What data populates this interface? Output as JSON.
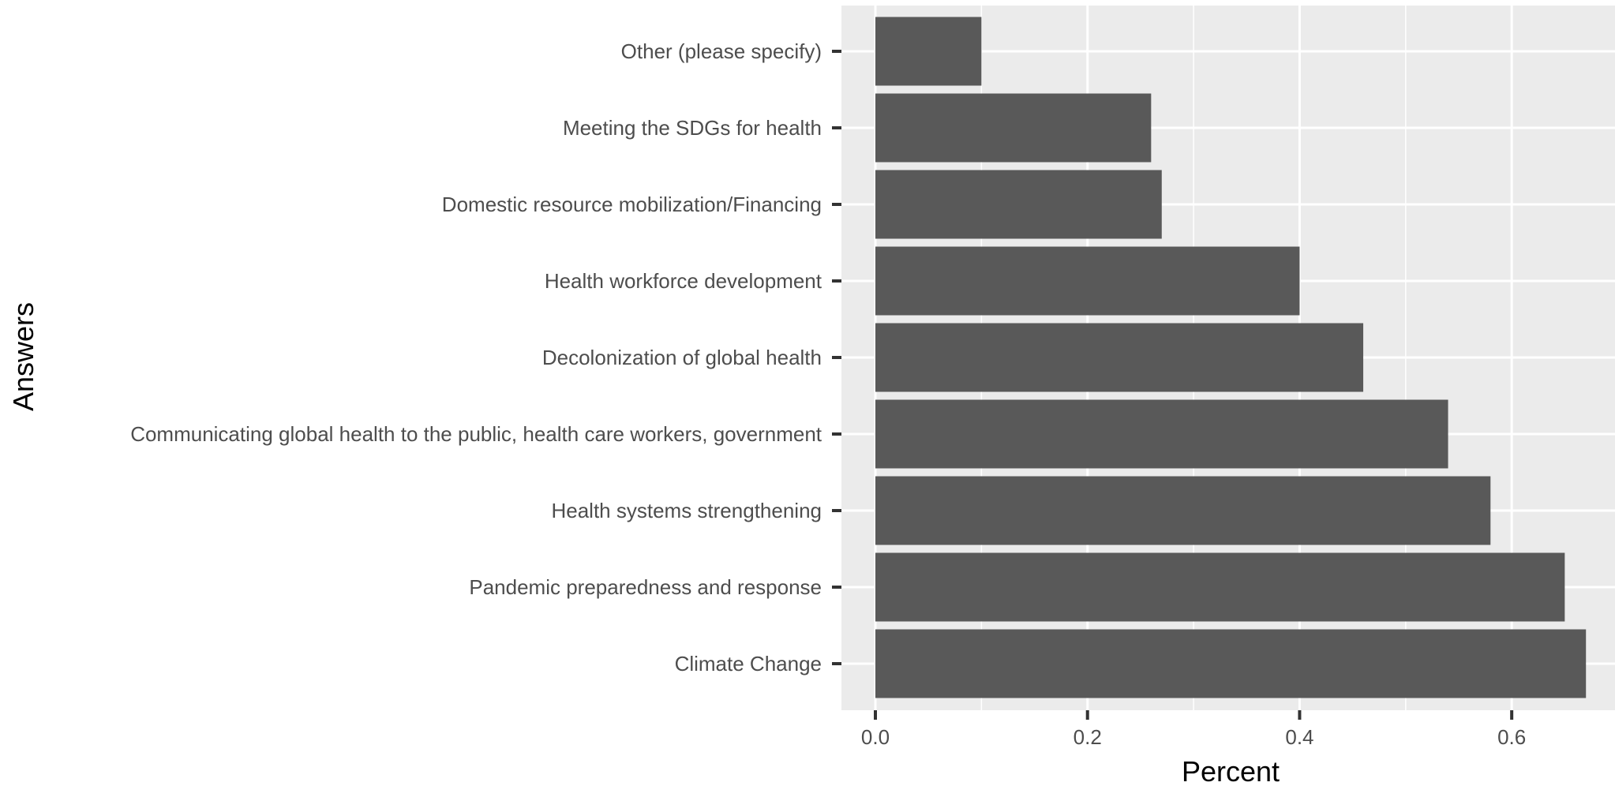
{
  "chart_data": {
    "type": "bar",
    "orientation": "horizontal",
    "xlabel": "Percent",
    "ylabel": "Answers",
    "xlim": [
      -0.045,
      0.67
    ],
    "x_ticks": [
      0.0,
      0.2,
      0.4,
      0.6
    ],
    "x_tick_labels": [
      "0.0",
      "0.2",
      "0.4",
      "0.6"
    ],
    "grid": true,
    "categories": [
      "Other (please specify)",
      "Meeting the SDGs for health",
      "Domestic resource mobilization/Financing",
      "Health workforce development",
      "Decolonization of global health",
      "Communicating global health to the public, health care workers, government",
      "Health systems strengthening",
      "Pandemic preparedness and response",
      "Climate Change"
    ],
    "values": [
      0.1,
      0.26,
      0.27,
      0.4,
      0.46,
      0.54,
      0.58,
      0.65,
      0.67
    ],
    "colors": {
      "bar": "#595959",
      "panel": "#ebebeb",
      "grid": "#ffffff",
      "tick_text": "#4d4d4d",
      "tick_mark": "#333333"
    }
  }
}
